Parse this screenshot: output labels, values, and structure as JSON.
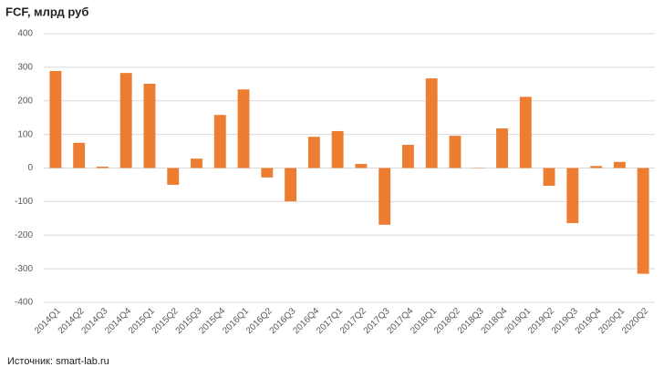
{
  "chart_data": {
    "type": "bar",
    "title": "FCF, млрд руб",
    "source": "Источник: smart-lab.ru",
    "categories": [
      "2014Q1",
      "2014Q2",
      "2014Q3",
      "2014Q4",
      "2015Q1",
      "2015Q2",
      "2015Q3",
      "2015Q4",
      "2016Q1",
      "2016Q2",
      "2016Q3",
      "2016Q4",
      "2017Q1",
      "2017Q2",
      "2017Q3",
      "2017Q4",
      "2018Q1",
      "2018Q2",
      "2018Q3",
      "2018Q4",
      "2019Q1",
      "2019Q2",
      "2019Q3",
      "2019Q4",
      "2020Q1",
      "2020Q2"
    ],
    "values": [
      289,
      75,
      4,
      283,
      251,
      -50,
      28,
      158,
      234,
      -28,
      -99,
      93,
      110,
      12,
      -169,
      69,
      267,
      96,
      1,
      118,
      212,
      -53,
      -164,
      6,
      18,
      -315
    ],
    "color": "#ed7d31",
    "ylim": [
      -400,
      400
    ],
    "yticks": [
      -400,
      -300,
      -200,
      -100,
      0,
      100,
      200,
      300,
      400
    ],
    "grid": true
  }
}
